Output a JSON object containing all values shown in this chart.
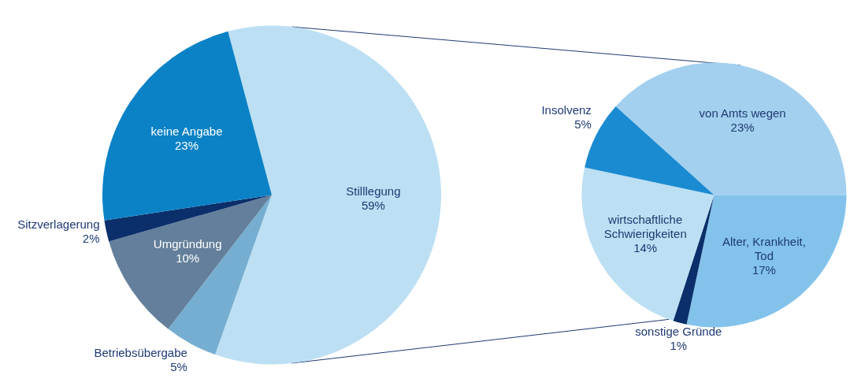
{
  "chart_data": [
    {
      "type": "pie",
      "categories": [
        "Stilllegung",
        "Betriebsübergabe",
        "Umgründung",
        "Sitzverlagerung",
        "keine Angabe"
      ],
      "values": [
        59,
        5,
        10,
        2,
        23
      ],
      "colors": [
        "#bcdff3",
        "#75aed0",
        "#637f9b",
        "#0b2f6b",
        "#0b82c6"
      ],
      "value_labels": [
        "59%",
        "5%",
        "10%",
        "2%",
        "23%"
      ]
    },
    {
      "type": "pie",
      "categories": [
        "von Amts wegen",
        "Alter, Krankheit, Tod",
        "sonstige Gründe",
        "wirtschaftliche Schwierigkeiten",
        "Insolvenz"
      ],
      "values": [
        23,
        17,
        1,
        14,
        5
      ],
      "colors": [
        "#a3d0ee",
        "#83c3eb",
        "#0b2f6b",
        "#bcdff3",
        "#1a8bd1"
      ],
      "value_labels": [
        "23%",
        "17%",
        "1%",
        "14%",
        "5%"
      ]
    }
  ]
}
